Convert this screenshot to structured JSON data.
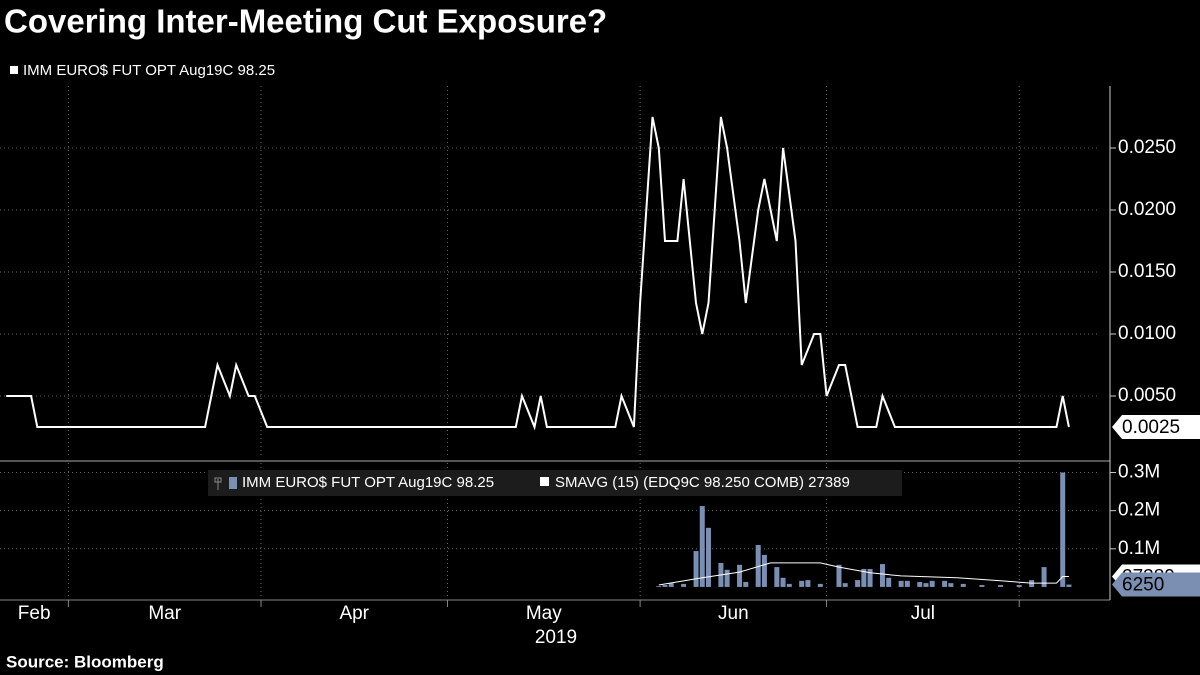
{
  "chart_data": [
    {
      "type": "line",
      "title": "Covering Inter-Meeting Cut Exposure?",
      "series": [
        {
          "name": "IMM EURO$ FUT OPT Aug19C 98.25",
          "color": "#ffffff",
          "x": [
            50,
            54,
            55,
            82,
            84,
            86,
            87,
            89,
            90,
            92,
            132,
            133,
            135,
            136,
            137,
            148,
            149,
            151,
            152,
            154,
            155,
            156,
            158,
            159,
            161,
            162,
            163,
            165,
            166,
            168,
            169,
            171,
            172,
            174,
            175,
            177,
            178,
            180,
            181,
            182,
            184,
            185,
            187,
            190,
            191,
            193,
            219,
            220,
            221
          ],
          "values": [
            0.005,
            0.005,
            0.0025,
            0.0025,
            0.0075,
            0.005,
            0.0075,
            0.005,
            0.005,
            0.0025,
            0.0025,
            0.005,
            0.0025,
            0.005,
            0.0025,
            0.0025,
            0.005,
            0.0025,
            0.0125,
            0.0275,
            0.025,
            0.0175,
            0.0175,
            0.0225,
            0.0125,
            0.01,
            0.0125,
            0.0275,
            0.025,
            0.0175,
            0.0125,
            0.02,
            0.0225,
            0.0175,
            0.025,
            0.0175,
            0.0075,
            0.01,
            0.01,
            0.005,
            0.0075,
            0.0075,
            0.0025,
            0.0025,
            0.005,
            0.0025,
            0.0025,
            0.005,
            0.0025
          ]
        }
      ],
      "xlim": [
        49,
        226
      ],
      "xticks": [
        60,
        91,
        121,
        152,
        182,
        213
      ],
      "ylim": [
        0,
        0.03
      ],
      "yticks": [
        {
          "value": 0.005,
          "label": "0.0050"
        },
        {
          "value": 0.01,
          "label": "0.0100"
        },
        {
          "value": 0.015,
          "label": "0.0150"
        },
        {
          "value": 0.02,
          "label": "0.0200"
        },
        {
          "value": 0.025,
          "label": "0.0250"
        }
      ],
      "grid": true
    },
    {
      "type": "bar",
      "series": [
        {
          "name": "IMM EURO$ FUT OPT Aug19C 98.25",
          "color": "#7b8fb3",
          "x": [
            155,
            156,
            157,
            159,
            161,
            162,
            163,
            165,
            166,
            168,
            169,
            171,
            172,
            174,
            175,
            176,
            178,
            179,
            181,
            184,
            185,
            187,
            188,
            189,
            191,
            192,
            194,
            195,
            197,
            198,
            199,
            201,
            202,
            204,
            207,
            210,
            213,
            215,
            217,
            220,
            221
          ],
          "values": [
            2000,
            5000,
            10000,
            8000,
            94000,
            212000,
            155000,
            63000,
            45000,
            58000,
            13000,
            110000,
            84000,
            52000,
            24000,
            8000,
            16000,
            18000,
            8000,
            58000,
            10000,
            18000,
            47000,
            47000,
            60000,
            24000,
            16000,
            16000,
            13000,
            10000,
            16000,
            16000,
            10000,
            8000,
            5000,
            5000,
            5000,
            18000,
            52000,
            300000,
            6250
          ]
        },
        {
          "name": "SMAVG (15) (EDQ9C 98.250 COMB) 27389",
          "type": "line",
          "color": "#ffffff",
          "x": [
            155,
            162,
            168,
            173,
            181,
            184,
            189,
            194,
            203,
            210,
            215,
            219,
            220,
            221
          ],
          "values": [
            5000,
            24000,
            39000,
            63000,
            63000,
            52000,
            37000,
            29000,
            24000,
            16000,
            10000,
            10000,
            27389,
            27389
          ]
        }
      ],
      "xlim": [
        49,
        226
      ],
      "xticks": [
        {
          "value": 32,
          "label": "Feb"
        },
        {
          "value": 60,
          "label": "Mar"
        },
        {
          "value": 91,
          "label": "Apr"
        },
        {
          "value": 121,
          "label": "May"
        },
        {
          "value": 152,
          "label": "Jun"
        },
        {
          "value": 182,
          "label": "Jul"
        },
        213
      ],
      "xlabel": "2019",
      "ylim": [
        -29000,
        325000
      ],
      "yticks": [
        {
          "value": 100000,
          "label": "0.1M"
        },
        {
          "value": 200000,
          "label": "0.2M"
        },
        {
          "value": 300000,
          "label": "0.3M"
        }
      ],
      "grid": true,
      "source": "Source: Bloomberg"
    }
  ]
}
